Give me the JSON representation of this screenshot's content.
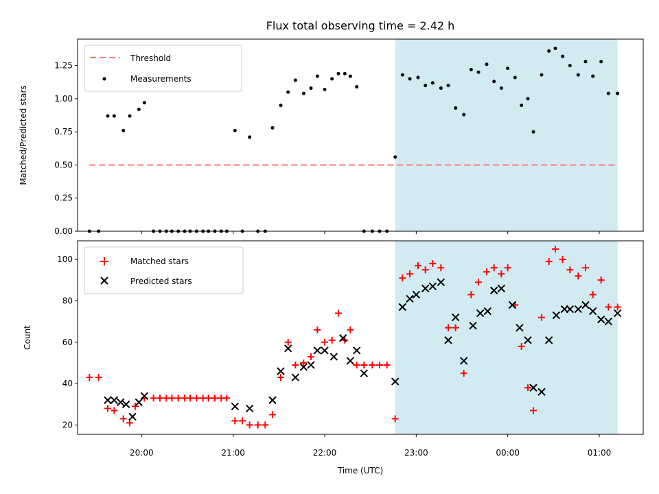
{
  "chart_data": {
    "type": "scatter",
    "title": "Flux total observing time = 2.42 h",
    "xlabel": "Time (UTC)",
    "x_ticks": [
      "20:00",
      "21:00",
      "22:00",
      "23:00",
      "00:00",
      "01:00"
    ],
    "x_range_hours": [
      19.3,
      25.48
    ],
    "shaded_interval_hours": [
      22.77,
      25.2
    ],
    "shade_color": "#add8e6",
    "panels": [
      {
        "ylabel": "Matched/Predicted stars",
        "ylim": [
          0,
          1.45
        ],
        "y_ticks": [
          "0.00",
          "0.25",
          "0.50",
          "0.75",
          "1.00",
          "1.25"
        ],
        "y_tick_values": [
          0,
          0.25,
          0.5,
          0.75,
          1.0,
          1.25
        ],
        "threshold": {
          "name": "Threshold",
          "value": 0.5,
          "x_range_hours": [
            19.43,
            25.2
          ],
          "color": "#ff7777"
        },
        "series": [
          {
            "name": "Measurements",
            "color": "#000000",
            "marker": "dot",
            "x": [
              19.43,
              19.53,
              19.63,
              19.7,
              19.8,
              19.87,
              19.97,
              20.03,
              20.13,
              20.2,
              20.27,
              20.33,
              20.4,
              20.47,
              20.53,
              20.6,
              20.67,
              20.73,
              20.8,
              20.87,
              20.93,
              21.02,
              21.1,
              21.18,
              21.27,
              21.35,
              21.43,
              21.52,
              21.6,
              21.68,
              21.77,
              21.85,
              21.92,
              22.0,
              22.08,
              22.15,
              22.22,
              22.28,
              22.35,
              22.43,
              22.52,
              22.6,
              22.68,
              22.77,
              22.85,
              22.93,
              23.02,
              23.1,
              23.18,
              23.27,
              23.35,
              23.43,
              23.52,
              23.6,
              23.68,
              23.77,
              23.85,
              23.93,
              24.0,
              24.08,
              24.15,
              24.22,
              24.28,
              24.37,
              24.45,
              24.52,
              24.6,
              24.68,
              24.77,
              24.85,
              24.93,
              25.02,
              25.1,
              25.2
            ],
            "y": [
              0,
              0,
              0.87,
              0.87,
              0.76,
              0.87,
              0.92,
              0.97,
              0,
              0,
              0,
              0,
              0,
              0,
              0,
              0,
              0,
              0,
              0,
              0,
              0,
              0.76,
              0,
              0.71,
              0,
              0,
              0.78,
              0.95,
              1.05,
              1.14,
              1.04,
              1.08,
              1.17,
              1.07,
              1.15,
              1.19,
              1.19,
              1.17,
              1.09,
              0,
              0,
              0,
              0,
              0.56,
              1.18,
              1.15,
              1.16,
              1.1,
              1.12,
              1.08,
              1.1,
              0.93,
              0.88,
              1.22,
              1.2,
              1.26,
              1.13,
              1.08,
              1.23,
              1.16,
              0.95,
              1.0,
              0.75,
              1.18,
              1.36,
              1.38,
              1.32,
              1.25,
              1.18,
              1.28,
              1.17,
              1.28,
              1.04,
              1.04
            ]
          }
        ]
      },
      {
        "ylabel": "Count",
        "ylim": [
          15.5,
          109
        ],
        "y_ticks": [
          "20",
          "40",
          "60",
          "80",
          "100"
        ],
        "y_tick_values": [
          20,
          40,
          60,
          80,
          100
        ],
        "series": [
          {
            "name": "Matched stars",
            "color": "#ff0000",
            "marker": "plus",
            "x": [
              19.43,
              19.53,
              19.63,
              19.7,
              19.8,
              19.87,
              19.93,
              20.03,
              20.13,
              20.2,
              20.27,
              20.33,
              20.4,
              20.47,
              20.53,
              20.6,
              20.67,
              20.73,
              20.8,
              20.87,
              20.93,
              21.02,
              21.1,
              21.18,
              21.27,
              21.35,
              21.43,
              21.52,
              21.6,
              21.68,
              21.77,
              21.85,
              21.92,
              22.0,
              22.08,
              22.15,
              22.22,
              22.28,
              22.35,
              22.43,
              22.52,
              22.6,
              22.68,
              22.77,
              22.85,
              22.93,
              23.02,
              23.1,
              23.18,
              23.27,
              23.35,
              23.43,
              23.52,
              23.6,
              23.68,
              23.77,
              23.85,
              23.93,
              24.0,
              24.08,
              24.15,
              24.22,
              24.28,
              24.37,
              24.45,
              24.52,
              24.6,
              24.68,
              24.77,
              24.85,
              24.93,
              25.02,
              25.1,
              25.2
            ],
            "y": [
              43,
              43,
              28,
              27,
              23,
              21,
              29,
              33,
              33,
              33,
              33,
              33,
              33,
              33,
              33,
              33,
              33,
              33,
              33,
              33,
              33,
              22,
              22,
              20,
              20,
              20,
              25,
              43,
              60,
              49,
              50,
              53,
              66,
              60,
              61,
              74,
              61,
              66,
              49,
              49,
              49,
              49,
              49,
              23,
              91,
              93,
              97,
              95,
              98,
              96,
              67,
              67,
              45,
              83,
              89,
              94,
              96,
              93,
              96,
              78,
              58,
              38,
              27,
              72,
              99,
              105,
              100,
              95,
              92,
              96,
              83,
              90,
              77,
              77
            ]
          },
          {
            "name": "Predicted stars",
            "color": "#000000",
            "marker": "x",
            "x": [
              19.63,
              19.7,
              19.77,
              19.83,
              19.9,
              19.97,
              20.03,
              21.02,
              21.18,
              21.43,
              21.52,
              21.6,
              21.68,
              21.77,
              21.85,
              21.92,
              22.0,
              22.1,
              22.2,
              22.28,
              22.35,
              22.43,
              22.77,
              22.85,
              22.93,
              23.0,
              23.1,
              23.18,
              23.27,
              23.35,
              23.43,
              23.52,
              23.62,
              23.7,
              23.78,
              23.85,
              23.93,
              24.05,
              24.13,
              24.22,
              24.28,
              24.37,
              24.45,
              24.53,
              24.62,
              24.68,
              24.77,
              24.85,
              24.93,
              25.02,
              25.1,
              25.2
            ],
            "y": [
              32,
              32,
              31,
              30,
              24,
              31,
              34,
              29,
              28,
              32,
              46,
              57,
              43,
              48,
              49,
              56,
              56,
              53,
              62,
              51,
              56,
              45,
              41,
              77,
              81,
              83,
              86,
              87,
              89,
              61,
              72,
              51,
              68,
              74,
              75,
              85,
              86,
              78,
              67,
              61,
              38,
              36,
              61,
              73,
              76,
              76,
              76,
              78,
              75,
              71,
              70,
              74
            ]
          }
        ]
      }
    ]
  }
}
